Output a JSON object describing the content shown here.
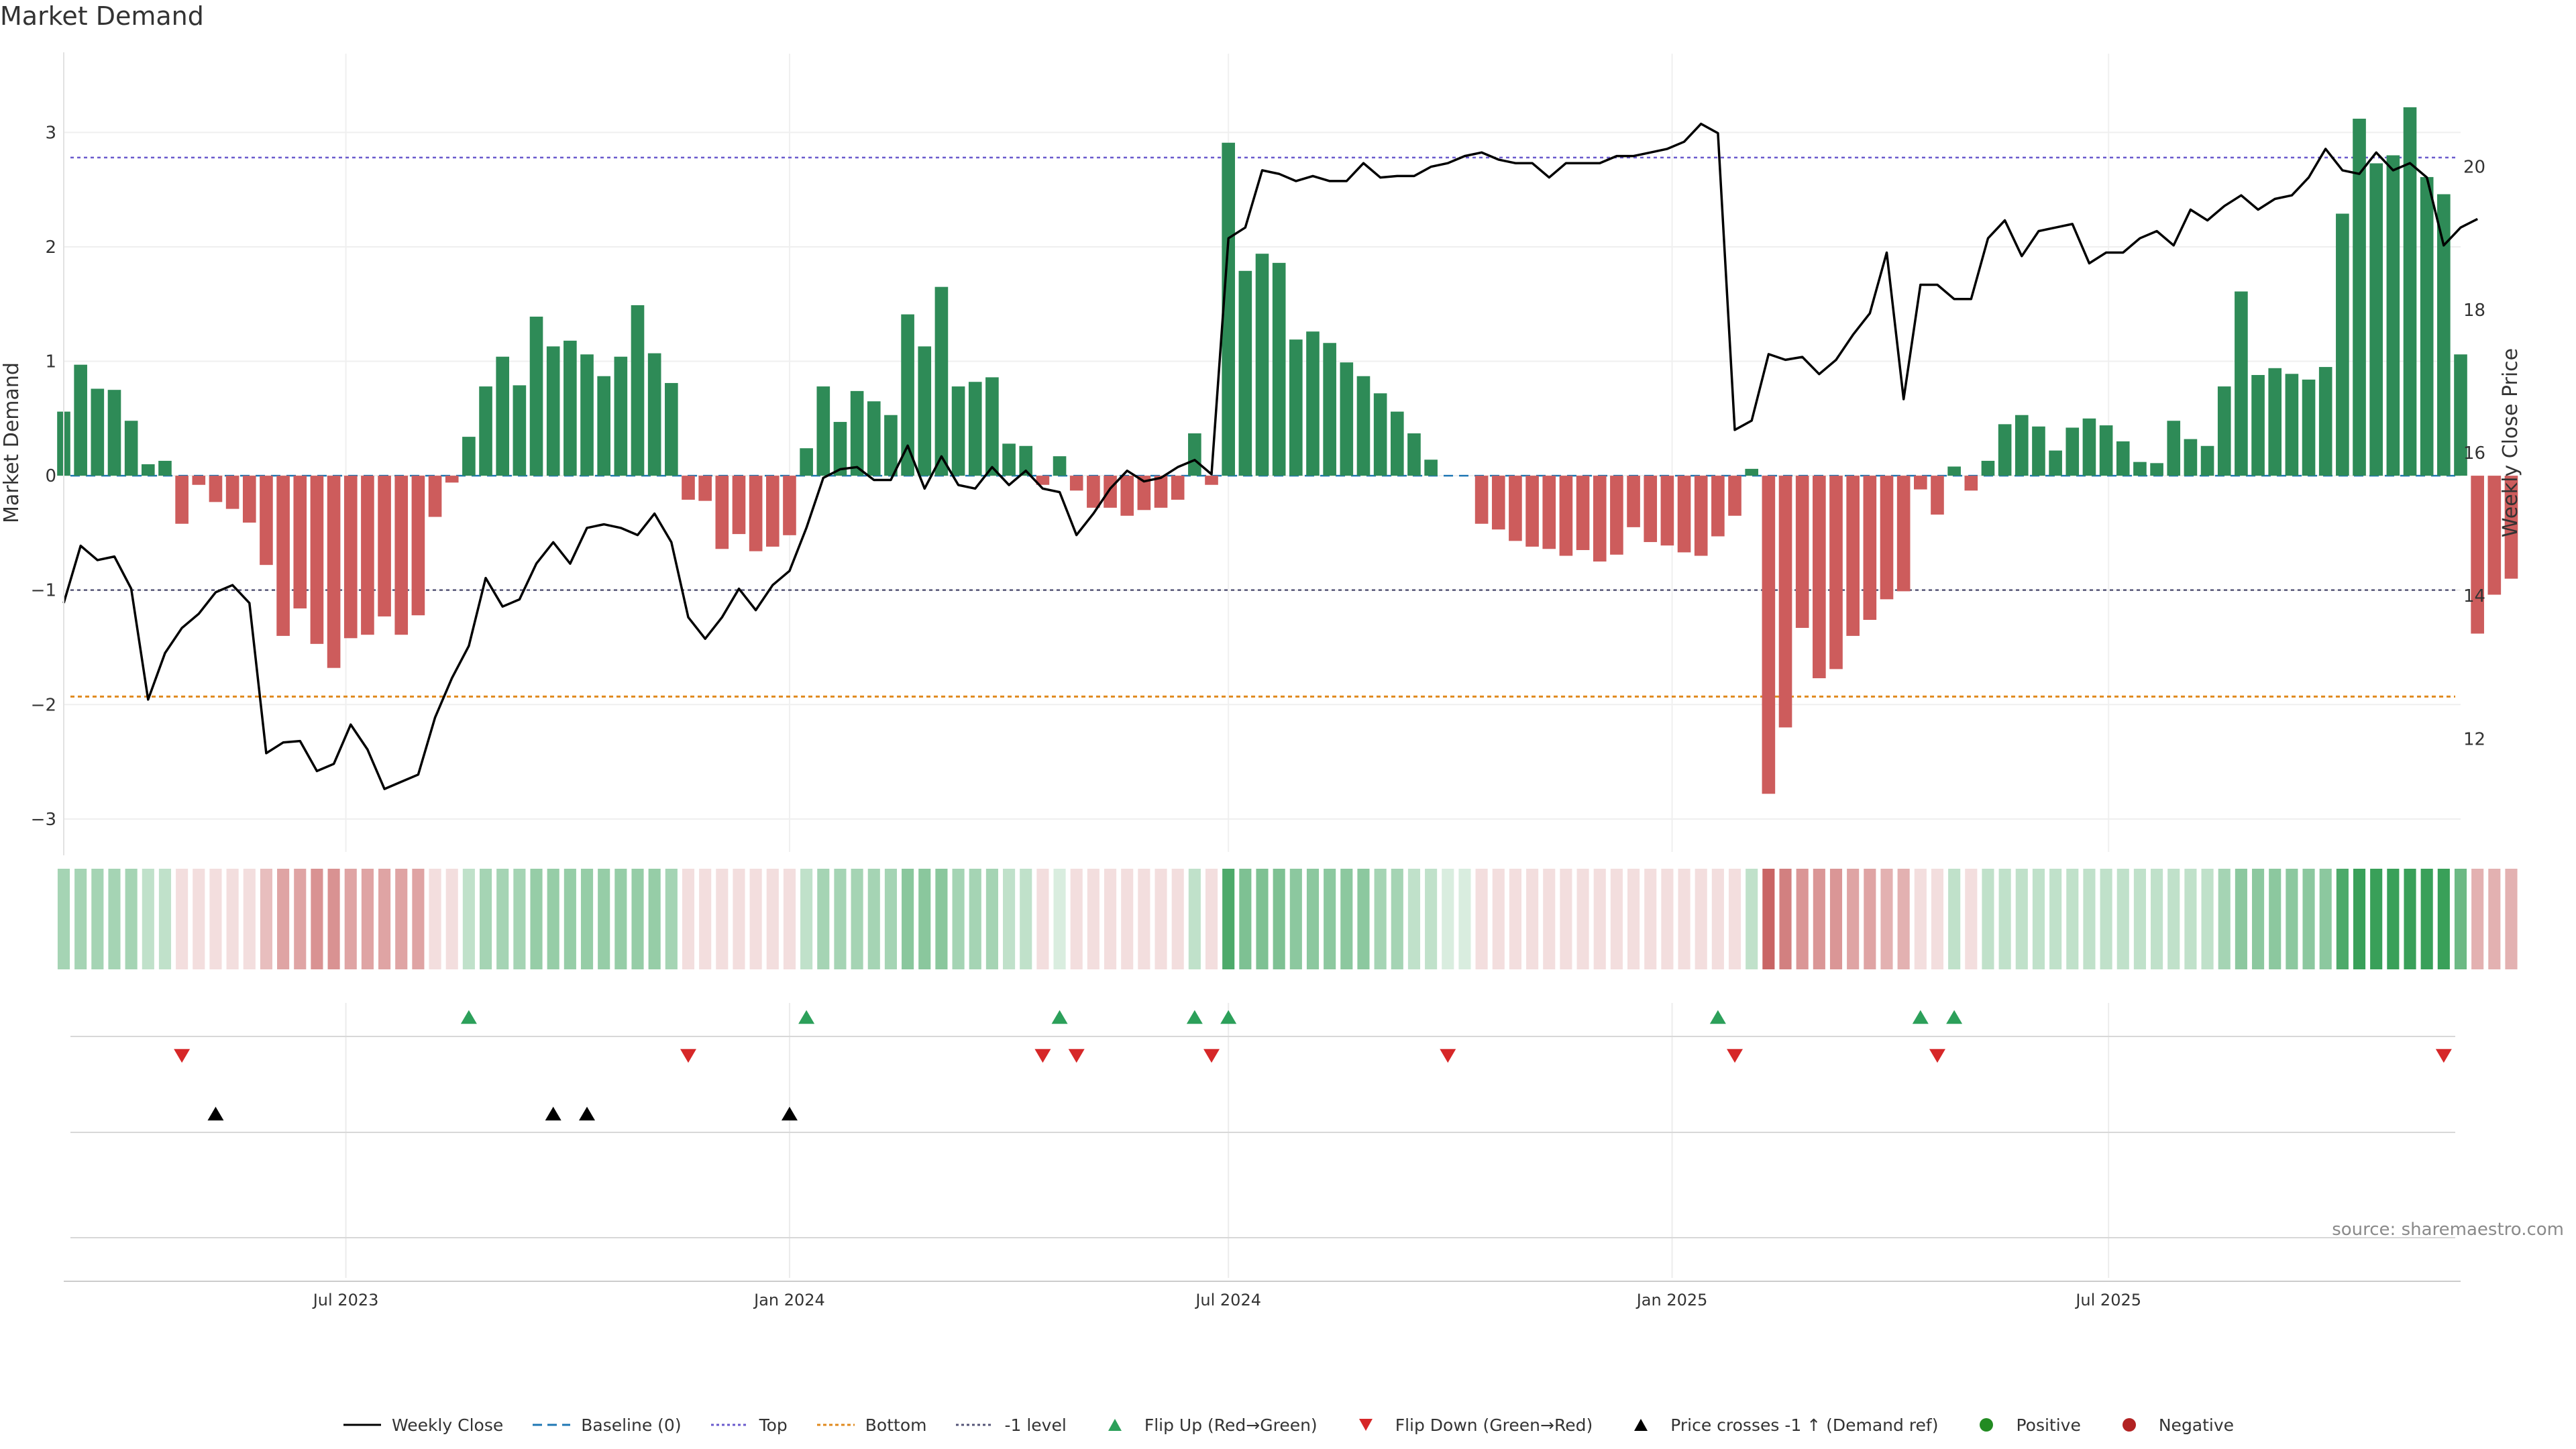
{
  "chart_data": {
    "type": "bar",
    "title": "Market Demand",
    "ylabel": "Market Demand",
    "y2label": "Weekly Close Price",
    "ylim": [
      -3.3,
      3.7
    ],
    "y2lim": [
      10.4,
      21.6
    ],
    "yticks": [
      3,
      2,
      1,
      0,
      -1,
      -2,
      -3
    ],
    "ytick_labels": [
      "3",
      "2",
      "1",
      "0",
      "−1",
      "−2",
      "−3"
    ],
    "y2ticks": [
      20,
      18,
      16,
      14,
      12
    ],
    "y2tick_labels": [
      "20",
      "18",
      "16",
      "14",
      "12"
    ],
    "x_start": "2023-03-06",
    "bar_days": 7,
    "x_end": "2025-11-24",
    "xticks": [
      {
        "date": "2023-07-01",
        "label": "Jul 2023"
      },
      {
        "date": "2024-01-01",
        "label": "Jan 2024"
      },
      {
        "date": "2024-07-01",
        "label": "Jul 2024"
      },
      {
        "date": "2025-01-01",
        "label": "Jan 2025"
      },
      {
        "date": "2025-07-01",
        "label": "Jul 2025"
      }
    ],
    "reference_lines": {
      "top": 2.78,
      "bottom": -1.93,
      "minus_one": -1,
      "baseline": 0
    },
    "demand": [
      0.56,
      0.97,
      0.76,
      0.75,
      0.48,
      0.1,
      0.13,
      -0.42,
      -0.08,
      -0.23,
      -0.29,
      -0.41,
      -0.78,
      -1.4,
      -1.16,
      -1.47,
      -1.68,
      -1.42,
      -1.39,
      -1.23,
      -1.39,
      -1.22,
      -0.36,
      -0.06,
      0.34,
      0.78,
      1.04,
      0.79,
      1.39,
      1.13,
      1.18,
      1.06,
      0.87,
      1.04,
      1.49,
      1.07,
      0.81,
      -0.21,
      -0.22,
      -0.64,
      -0.51,
      -0.66,
      -0.62,
      -0.52,
      0.24,
      0.78,
      0.47,
      0.74,
      0.65,
      0.53,
      1.41,
      1.13,
      1.65,
      0.78,
      0.82,
      0.86,
      0.28,
      0.26,
      -0.08,
      0.17,
      -0.13,
      -0.28,
      -0.28,
      -0.35,
      -0.3,
      -0.28,
      -0.21,
      0.37,
      -0.08,
      2.91,
      1.79,
      1.94,
      1.86,
      1.19,
      1.26,
      1.16,
      0.99,
      0.87,
      0.72,
      0.56,
      0.37,
      0.14,
      0,
      0,
      -0.42,
      -0.47,
      -0.57,
      -0.62,
      -0.64,
      -0.7,
      -0.65,
      -0.75,
      -0.69,
      -0.45,
      -0.58,
      -0.61,
      -0.67,
      -0.7,
      -0.53,
      -0.35,
      0.06,
      -2.78,
      -2.2,
      -1.33,
      -1.77,
      -1.69,
      -1.4,
      -1.26,
      -1.08,
      -1.01,
      -0.12,
      -0.34,
      0.08,
      -0.13,
      0.13,
      0.45,
      0.53,
      0.43,
      0.22,
      0.42,
      0.5,
      0.44,
      0.3,
      0.12,
      0.11,
      0.48,
      0.32,
      0.26,
      0.78,
      1.61,
      0.88,
      0.94,
      0.89,
      0.84,
      0.95,
      2.29,
      3.12,
      2.73,
      2.8,
      3.22,
      2.61,
      2.46,
      1.06,
      -1.38,
      -1.04,
      -0.9
    ],
    "price": [
      13.9,
      14.7,
      14.5,
      14.55,
      14.1,
      12.55,
      13.2,
      13.55,
      13.75,
      14.05,
      14.15,
      13.9,
      11.8,
      11.95,
      11.97,
      11.55,
      11.65,
      12.2,
      11.85,
      11.3,
      11.4,
      11.5,
      12.3,
      12.85,
      13.3,
      14.25,
      13.85,
      13.95,
      14.45,
      14.75,
      14.45,
      14.95,
      15.0,
      14.95,
      14.85,
      15.15,
      14.75,
      13.7,
      13.4,
      13.7,
      14.1,
      13.8,
      14.15,
      14.35,
      14.95,
      15.65,
      15.77,
      15.8,
      15.62,
      15.62,
      16.1,
      15.5,
      15.95,
      15.55,
      15.5,
      15.8,
      15.55,
      15.75,
      15.5,
      15.45,
      14.85,
      15.15,
      15.5,
      15.75,
      15.6,
      15.65,
      15.8,
      15.9,
      15.7,
      19.0,
      19.15,
      19.95,
      19.9,
      19.8,
      19.87,
      19.8,
      19.8,
      20.05,
      19.85,
      19.87,
      19.87,
      20.0,
      20.05,
      20.15,
      20.2,
      20.1,
      20.05,
      20.05,
      19.85,
      20.05,
      20.05,
      20.05,
      20.15,
      20.15,
      20.2,
      20.25,
      20.35,
      20.6,
      20.47,
      16.32,
      16.45,
      17.38,
      17.3,
      17.34,
      17.1,
      17.3,
      17.65,
      17.95,
      18.8,
      16.75,
      18.35,
      18.35,
      18.15,
      18.15,
      19.0,
      19.25,
      18.75,
      19.1,
      19.15,
      19.2,
      18.65,
      18.8,
      18.8,
      19.0,
      19.1,
      18.9,
      19.4,
      19.25,
      19.45,
      19.6,
      19.4,
      19.55,
      19.6,
      19.85,
      20.25,
      19.95,
      19.9,
      20.2,
      19.95,
      20.05,
      19.85,
      18.9,
      19.15,
      19.27
    ],
    "flip_up_idx": [
      24,
      44,
      59,
      67,
      69,
      98,
      110,
      112
    ],
    "flip_down_idx": [
      7,
      37,
      58,
      60,
      68,
      82,
      99,
      111,
      141
    ],
    "price_cross_idx": [
      9,
      29,
      31,
      43
    ],
    "shading_alpha": [
      0.43,
      0.43,
      0.43,
      0.43,
      0.43,
      0.3,
      0.3,
      0.18,
      0.18,
      0.18,
      0.18,
      0.18,
      0.36,
      0.5,
      0.5,
      0.6,
      0.6,
      0.5,
      0.5,
      0.5,
      0.5,
      0.5,
      0.18,
      0.18,
      0.3,
      0.43,
      0.43,
      0.43,
      0.5,
      0.5,
      0.5,
      0.5,
      0.5,
      0.5,
      0.5,
      0.5,
      0.43,
      0.18,
      0.18,
      0.18,
      0.18,
      0.18,
      0.18,
      0.18,
      0.3,
      0.43,
      0.43,
      0.43,
      0.43,
      0.43,
      0.56,
      0.56,
      0.56,
      0.43,
      0.43,
      0.43,
      0.3,
      0.3,
      0.18,
      0.18,
      0.18,
      0.18,
      0.18,
      0.18,
      0.18,
      0.18,
      0.18,
      0.3,
      0.18,
      0.85,
      0.62,
      0.62,
      0.62,
      0.55,
      0.55,
      0.55,
      0.55,
      0.55,
      0.43,
      0.43,
      0.3,
      0.3,
      0.18,
      0.18,
      0.18,
      0.18,
      0.18,
      0.18,
      0.18,
      0.18,
      0.18,
      0.18,
      0.18,
      0.18,
      0.18,
      0.18,
      0.18,
      0.18,
      0.18,
      0.18,
      0.3,
      0.85,
      0.7,
      0.58,
      0.58,
      0.58,
      0.5,
      0.5,
      0.43,
      0.43,
      0.18,
      0.18,
      0.3,
      0.18,
      0.3,
      0.3,
      0.3,
      0.3,
      0.3,
      0.3,
      0.3,
      0.3,
      0.3,
      0.3,
      0.3,
      0.3,
      0.3,
      0.3,
      0.43,
      0.55,
      0.55,
      0.55,
      0.55,
      0.55,
      0.55,
      0.85,
      0.95,
      0.95,
      0.95,
      0.95,
      0.95,
      0.95,
      0.7,
      0.43,
      0.43,
      0.43
    ],
    "colors": {
      "positive": "#2e8b57",
      "negative": "#cd5c5c",
      "price": "#000000",
      "baseline": "#1f77b4",
      "top": "#6a5acd",
      "bottom": "#e08a1e",
      "minus_one": "#555577",
      "flip_up": "#2ca05a",
      "flip_down": "#d62728",
      "cross": "#000000",
      "pos_dot": "#228b22",
      "neg_dot": "#b22222"
    }
  },
  "source": "source: sharemaestro.com",
  "legend": [
    {
      "key": "price",
      "label": "Weekly Close"
    },
    {
      "key": "baseline",
      "label": "Baseline (0)"
    },
    {
      "key": "top",
      "label": "Top"
    },
    {
      "key": "bottom",
      "label": "Bottom"
    },
    {
      "key": "minus_one",
      "label": "-1 level"
    },
    {
      "key": "flip_up",
      "label": "Flip Up (Red→Green)"
    },
    {
      "key": "flip_down",
      "label": "Flip Down (Green→Red)"
    },
    {
      "key": "cross",
      "label": "Price crosses -1 ↑ (Demand ref)"
    },
    {
      "key": "pos_dot",
      "label": "Positive"
    },
    {
      "key": "neg_dot",
      "label": "Negative"
    }
  ]
}
